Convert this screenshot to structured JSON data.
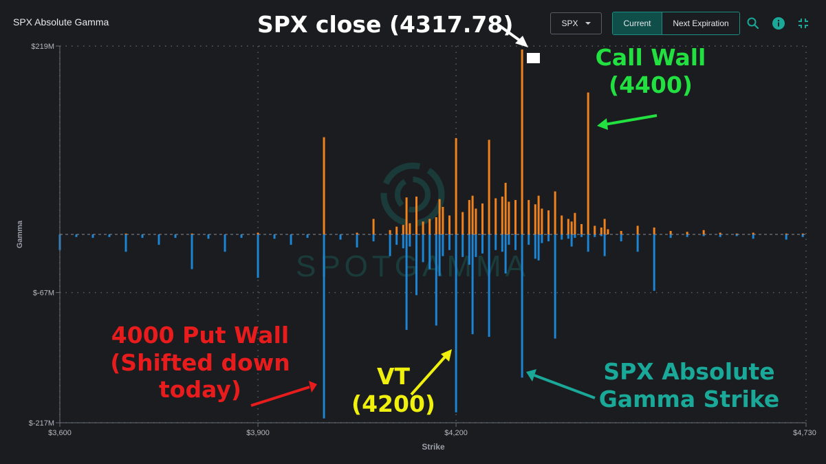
{
  "header": {
    "title": "SPX Absolute Gamma",
    "symbol_select": "SPX",
    "toggle_current": "Current",
    "toggle_next": "Next Expiration"
  },
  "icons": [
    "search-icon",
    "info-icon",
    "collapse-icon"
  ],
  "colors": {
    "call": "#f0821e",
    "put": "#1d84d4",
    "teal": "#1aa898",
    "background": "#1a1c20"
  },
  "chart_data": {
    "type": "bar",
    "xlabel": "Strike",
    "ylabel": "Gamma",
    "xlim": [
      3600,
      4730
    ],
    "ylim": [
      -217,
      219
    ],
    "units": "$M",
    "ytick_labels": [
      "$219M",
      "$-67M",
      "$-217M"
    ],
    "xtick_labels": [
      "$3,600",
      "$3,900",
      "$4,200",
      "$4,730"
    ],
    "series": [
      {
        "name": "call",
        "strikes": [
          3700,
          3800,
          3900,
          4000,
          4050,
          4075,
          4100,
          4110,
          4120,
          4125,
          4130,
          4140,
          4150,
          4160,
          4170,
          4175,
          4180,
          4190,
          4200,
          4210,
          4220,
          4225,
          4230,
          4240,
          4250,
          4260,
          4270,
          4275,
          4280,
          4290,
          4300,
          4310,
          4320,
          4325,
          4330,
          4340,
          4350,
          4360,
          4370,
          4375,
          4380,
          4390,
          4400,
          4410,
          4420,
          4425,
          4430,
          4450,
          4475,
          4500,
          4525,
          4550,
          4575,
          4600,
          4625,
          4650,
          4700,
          4725
        ],
        "values": [
          1,
          1,
          2,
          113,
          2,
          18,
          5,
          9,
          11,
          43,
          13,
          44,
          15,
          18,
          20,
          41,
          32,
          22,
          112,
          26,
          40,
          45,
          30,
          36,
          110,
          42,
          44,
          60,
          38,
          40,
          215,
          40,
          35,
          45,
          30,
          28,
          50,
          22,
          18,
          15,
          25,
          12,
          165,
          10,
          8,
          18,
          6,
          4,
          10,
          8,
          4,
          3,
          5,
          2,
          1,
          2,
          1,
          1
        ]
      },
      {
        "name": "put",
        "strikes": [
          3600,
          3625,
          3650,
          3675,
          3700,
          3725,
          3750,
          3775,
          3800,
          3825,
          3850,
          3875,
          3900,
          3925,
          3950,
          3975,
          4000,
          4025,
          4050,
          4075,
          4100,
          4110,
          4120,
          4125,
          4130,
          4140,
          4150,
          4160,
          4170,
          4175,
          4180,
          4190,
          4200,
          4210,
          4220,
          4225,
          4230,
          4240,
          4250,
          4260,
          4270,
          4275,
          4280,
          4290,
          4300,
          4310,
          4320,
          4325,
          4330,
          4340,
          4350,
          4360,
          4370,
          4375,
          4380,
          4390,
          4400,
          4410,
          4420,
          4425,
          4450,
          4475,
          4500,
          4525,
          4550,
          4575,
          4600,
          4625,
          4650,
          4700,
          4725
        ],
        "values": [
          -18,
          -3,
          -4,
          -3,
          -20,
          -4,
          -12,
          -4,
          -40,
          -5,
          -20,
          -4,
          -50,
          -5,
          -12,
          -4,
          -212,
          -6,
          -15,
          -8,
          -25,
          -12,
          -16,
          -110,
          -14,
          -70,
          -32,
          -40,
          -105,
          -48,
          -25,
          -18,
          -205,
          -26,
          -35,
          -115,
          -26,
          -22,
          -118,
          -18,
          -20,
          -45,
          -12,
          -18,
          -165,
          -12,
          -28,
          -30,
          -10,
          -8,
          -120,
          -6,
          -5,
          -14,
          -4,
          -3,
          -20,
          -3,
          -2,
          -25,
          -8,
          -20,
          -65,
          -4,
          -3,
          -2,
          -3,
          -2,
          -5,
          -6,
          -3
        ]
      }
    ]
  },
  "annotations": {
    "spx_close": "SPX close (4317.78)",
    "call_wall_l1": "Call Wall",
    "call_wall_l2": "(4400)",
    "put_wall_l1": "4000 Put Wall",
    "put_wall_l2": "(Shifted down",
    "put_wall_l3": "today)",
    "vt_l1": "VT",
    "vt_l2": "(4200)",
    "abs_gamma_l1": "SPX Absolute",
    "abs_gamma_l2": "Gamma Strike"
  },
  "watermark": "SPOTGAMMA"
}
